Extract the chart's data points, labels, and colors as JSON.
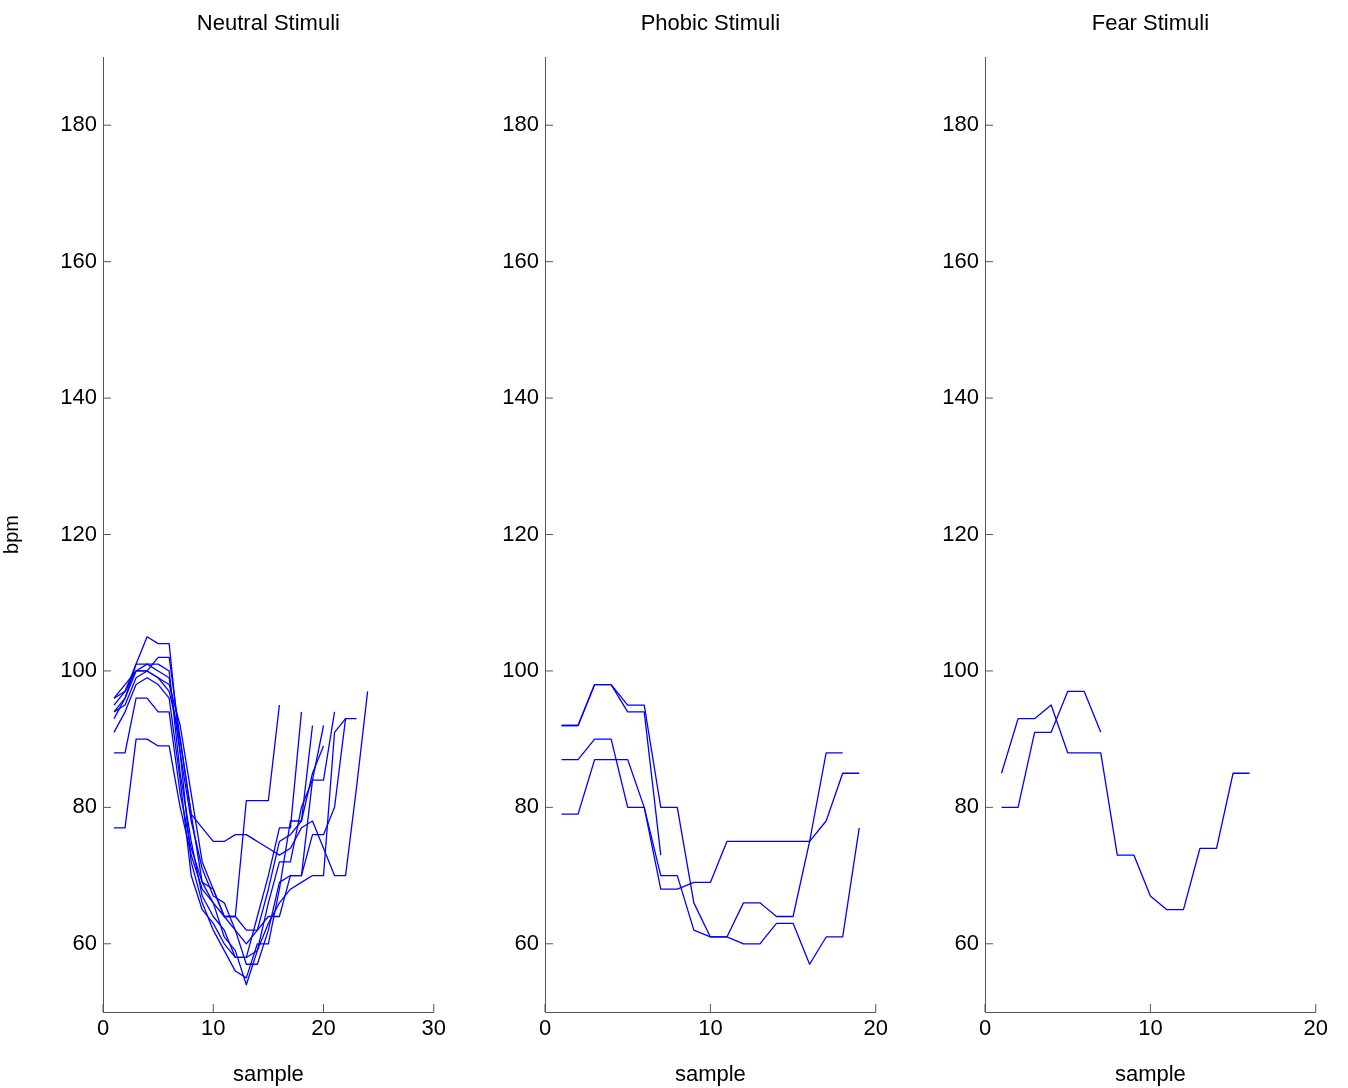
{
  "chart_data": [
    {
      "type": "line",
      "title": "Neutral Stimuli",
      "xlabel": "sample",
      "ylabel": "bpm",
      "xlim": [
        0,
        30
      ],
      "xticks": [
        0,
        10,
        20,
        30
      ],
      "ylim": [
        50,
        190
      ],
      "yticks": [
        60,
        80,
        100,
        120,
        140,
        160,
        180
      ],
      "grid": false,
      "legend": false,
      "marker": "none",
      "line_style": "solid",
      "series": [
        {
          "color": "#0000ff",
          "x": [
            1,
            2,
            3,
            4,
            5,
            6,
            7,
            8,
            9,
            10,
            11,
            12,
            13,
            14,
            15,
            16
          ],
          "values": [
            95,
            97,
            100,
            100,
            102,
            102,
            90,
            79,
            69,
            66,
            64,
            64,
            81,
            81,
            81,
            95
          ]
        },
        {
          "color": "#0000ff",
          "x": [
            1,
            2,
            3,
            4,
            5,
            6,
            7,
            8,
            9,
            10,
            11,
            12,
            13,
            14,
            15,
            16,
            17,
            18
          ],
          "values": [
            93,
            96,
            101,
            101,
            101,
            100,
            85,
            75,
            67,
            64,
            62,
            58,
            58,
            64,
            70,
            77,
            77,
            94
          ]
        },
        {
          "color": "#0000ff",
          "x": [
            1,
            2,
            3,
            4,
            5,
            6,
            7,
            8,
            9,
            10,
            11,
            12,
            13,
            14,
            15,
            16,
            17,
            18,
            19
          ],
          "values": [
            94,
            96,
            100,
            101,
            100,
            99,
            88,
            72,
            66,
            62,
            59,
            56,
            55,
            60,
            60,
            68,
            78,
            78,
            92
          ]
        },
        {
          "color": "#0000ff",
          "x": [
            1,
            2,
            3,
            4,
            5,
            6,
            7,
            8,
            9,
            10,
            11,
            12,
            13,
            14,
            15,
            16,
            17,
            18,
            19,
            20
          ],
          "values": [
            91,
            94,
            98,
            99,
            98,
            96,
            84,
            70,
            65,
            63,
            60,
            58,
            58,
            59,
            66,
            72,
            72,
            80,
            84,
            92
          ]
        },
        {
          "color": "#0000ff",
          "x": [
            1,
            2,
            3,
            4,
            5,
            6,
            7,
            8,
            9,
            10,
            11,
            12,
            13,
            14,
            15,
            16,
            17,
            18,
            19,
            20
          ],
          "values": [
            94,
            95,
            99,
            100,
            99,
            98,
            92,
            82,
            72,
            68,
            64,
            62,
            60,
            62,
            68,
            75,
            76,
            78,
            85,
            89
          ]
        },
        {
          "color": "#0000ff",
          "x": [
            1,
            2,
            3,
            4,
            5,
            6,
            7,
            8,
            9,
            10,
            11,
            12,
            13,
            14,
            15,
            16,
            17,
            18,
            19,
            20,
            21
          ],
          "values": [
            88,
            88,
            96,
            96,
            94,
            94,
            82,
            74,
            69,
            68,
            64,
            64,
            62,
            62,
            64,
            64,
            70,
            70,
            84,
            84,
            94
          ]
        },
        {
          "color": "#0000ff",
          "x": [
            1,
            2,
            3,
            4,
            5,
            6,
            7,
            8,
            9,
            10,
            11,
            12,
            13,
            14,
            15,
            16,
            17,
            18,
            19,
            20,
            21,
            22
          ],
          "values": [
            77,
            77,
            90,
            90,
            89,
            89,
            80,
            73,
            68,
            66,
            61,
            59,
            54,
            59,
            63,
            66,
            68,
            69,
            70,
            70,
            91,
            93
          ]
        },
        {
          "color": "#0000ff",
          "x": [
            1,
            2,
            3,
            4,
            5,
            6,
            7,
            8,
            9,
            10,
            11,
            12,
            13,
            14,
            15,
            16,
            17,
            18,
            19,
            20,
            21,
            22,
            23
          ],
          "values": [
            96,
            97,
            101,
            105,
            104,
            104,
            88,
            78,
            71,
            67,
            66,
            62,
            57,
            57,
            62,
            69,
            70,
            70,
            76,
            76,
            80,
            93,
            93
          ]
        },
        {
          "color": "#0000ff",
          "x": [
            1,
            2,
            3,
            4,
            5,
            6,
            7,
            8,
            9,
            10,
            11,
            12,
            13,
            14,
            15,
            16,
            17,
            18,
            19,
            20,
            21,
            22,
            23,
            24
          ],
          "values": [
            96,
            98,
            100,
            100,
            99,
            97,
            90,
            79,
            77,
            75,
            75,
            76,
            76,
            75,
            74,
            73,
            74,
            77,
            78,
            74,
            70,
            70,
            83,
            97
          ]
        }
      ]
    },
    {
      "type": "line",
      "title": "Phobic Stimuli",
      "xlabel": "sample",
      "xlim": [
        0,
        20
      ],
      "xticks": [
        0,
        10,
        20
      ],
      "ylim": [
        50,
        190
      ],
      "yticks": [
        60,
        80,
        100,
        120,
        140,
        160,
        180
      ],
      "grid": false,
      "legend": false,
      "marker": "none",
      "line_style": "solid",
      "series": [
        {
          "color": "#0000ff",
          "x": [
            1,
            2,
            3,
            4,
            5,
            6,
            7,
            8,
            9,
            10,
            11,
            12,
            13,
            14,
            15,
            16,
            17,
            18,
            19
          ],
          "values": [
            92,
            92,
            98,
            98,
            95,
            95,
            80,
            80,
            66,
            61,
            61,
            60,
            60,
            63,
            63,
            57,
            61,
            61,
            77
          ]
        },
        {
          "color": "#0000ff",
          "x": [
            1,
            2,
            3,
            4,
            5,
            6,
            7
          ],
          "values": [
            92,
            92,
            98,
            98,
            94,
            94,
            73
          ]
        },
        {
          "color": "#0000ff",
          "x": [
            1,
            2,
            3,
            4,
            5,
            6,
            7,
            8,
            9,
            10,
            11,
            12,
            13,
            14,
            15,
            16,
            17,
            18
          ],
          "values": [
            87,
            87,
            90,
            90,
            80,
            80,
            70,
            70,
            62,
            61,
            61,
            66,
            66,
            64,
            64,
            75,
            88,
            88
          ]
        },
        {
          "color": "#0000ff",
          "x": [
            1,
            2,
            3,
            4,
            5,
            6,
            7,
            8,
            9,
            10,
            11,
            12,
            13,
            14,
            15,
            16,
            17,
            18,
            19
          ],
          "values": [
            79,
            79,
            87,
            87,
            87,
            80,
            68,
            68,
            69,
            69,
            75,
            75,
            75,
            75,
            75,
            75,
            78,
            85,
            85
          ]
        }
      ]
    },
    {
      "type": "line",
      "title": "Fear Stimuli",
      "xlabel": "sample",
      "xlim": [
        0,
        20
      ],
      "xticks": [
        0,
        10,
        20
      ],
      "ylim": [
        50,
        190
      ],
      "yticks": [
        60,
        80,
        100,
        120,
        140,
        160,
        180
      ],
      "grid": false,
      "legend": false,
      "marker": "none",
      "line_style": "solid",
      "series": [
        {
          "color": "#0000ff",
          "x": [
            1,
            2,
            3,
            4,
            5,
            6,
            7,
            8,
            9,
            10,
            11,
            12,
            13,
            14,
            15,
            16
          ],
          "values": [
            85,
            93,
            93,
            95,
            88,
            88,
            88,
            73,
            73,
            67,
            65,
            65,
            74,
            74,
            85,
            85
          ]
        },
        {
          "color": "#0000ff",
          "x": [
            1,
            2,
            3,
            4,
            5,
            6,
            7
          ],
          "values": [
            80,
            80,
            91,
            91,
            97,
            97,
            91
          ]
        }
      ]
    }
  ]
}
